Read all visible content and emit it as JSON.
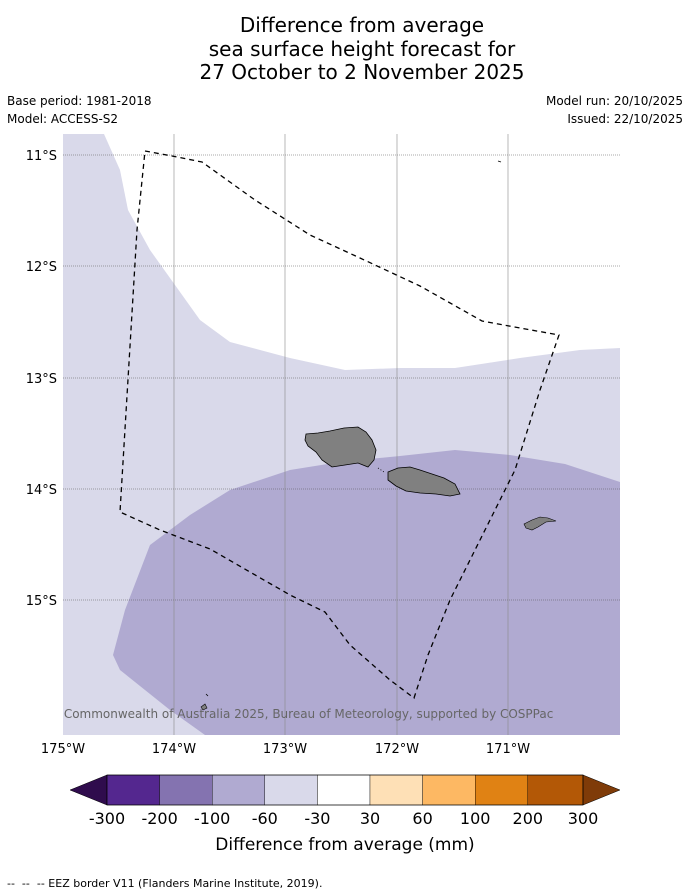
{
  "title": {
    "line1": "Difference from average",
    "line2": "sea surface height forecast for",
    "line3": "27 October to 2 November 2025"
  },
  "meta": {
    "base_period": "Base period: 1981-2018",
    "model": "Model: ACCESS-S2",
    "model_run": "Model run: 20/10/2025",
    "issued": "Issued: 22/10/2025"
  },
  "map": {
    "lat_labels": [
      "11°S",
      "12°S",
      "13°S",
      "14°S",
      "15°S"
    ],
    "lon_labels": [
      "175°W",
      "174°W",
      "173°W",
      "172°W",
      "171°W"
    ],
    "copyright": "© Commonwealth of Australia 2025, Bureau of Meteorology, supported by COSPPac"
  },
  "colorbar": {
    "ticks": [
      "-300",
      "-200",
      "-100",
      "-60",
      "-30",
      "30",
      "60",
      "100",
      "200",
      "300"
    ],
    "colors": [
      "#2f0c4d",
      "#54278f",
      "#8473b0",
      "#b0aad1",
      "#d9d9ea",
      "#ffffff",
      "#fee0b6",
      "#fdb863",
      "#e08214",
      "#b35806",
      "#7f3b08"
    ],
    "title": "Difference from average (mm)"
  },
  "footer": "--  --  -- EEZ border V11 (Flanders Marine Institute, 2019)."
}
